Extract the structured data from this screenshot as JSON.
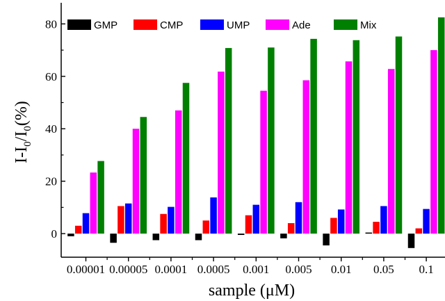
{
  "chart_data": {
    "type": "bar",
    "title": "",
    "xlabel": "sample (μM)",
    "ylabel_main": "I-I",
    "ylabel_sub1": "0",
    "ylabel_mid": "/I",
    "ylabel_sub2": "0",
    "ylabel_end": "(%)",
    "categories": [
      "0.00001",
      "0.00005",
      "0.0001",
      "0.0005",
      "0.001",
      "0.005",
      "0.01",
      "0.05",
      "0.1"
    ],
    "y_ticks": [
      "0",
      "20",
      "40",
      "60",
      "80"
    ],
    "ylim": [
      -9,
      87
    ],
    "legend_position": "top",
    "series": [
      {
        "name": "GMP",
        "color": "#000000",
        "values": [
          -1,
          -3.5,
          -2.5,
          -2.5,
          -0.5,
          -1.8,
          -4.5,
          0.4,
          -5.5
        ]
      },
      {
        "name": "CMP",
        "color": "#ff0000",
        "values": [
          3,
          10.5,
          7.5,
          5,
          7,
          4,
          6,
          4.5,
          2
        ]
      },
      {
        "name": "UMP",
        "color": "#0000ff",
        "values": [
          7.8,
          11.5,
          10.2,
          13.8,
          11,
          12,
          9.2,
          10.5,
          9.4
        ]
      },
      {
        "name": "Ade",
        "color": "#ff00ff",
        "values": [
          23.3,
          40,
          47,
          61.8,
          54.5,
          58.5,
          65.7,
          62.8,
          70
        ]
      },
      {
        "name": "Mix",
        "color": "#008000",
        "values": [
          27.7,
          44.5,
          57.5,
          70.8,
          71,
          74.3,
          73.8,
          75.2,
          82.5
        ]
      }
    ]
  }
}
